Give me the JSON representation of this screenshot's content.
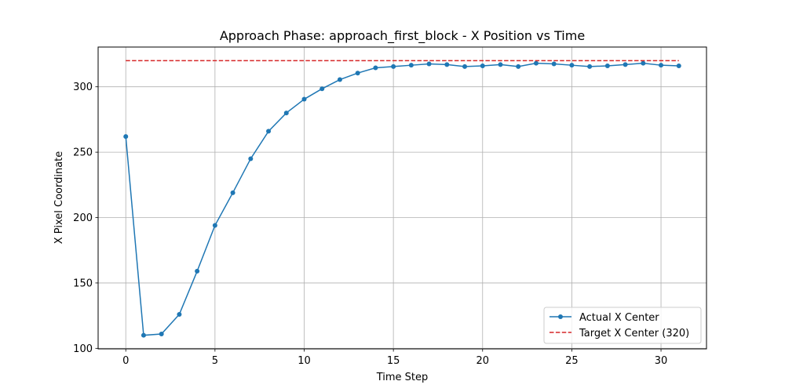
{
  "chart_data": {
    "type": "line",
    "title": "Approach Phase: approach_first_block - X Position vs Time",
    "xlabel": "Time Step",
    "ylabel": "X Pixel Coordinate",
    "xlim": [
      -1.55,
      32.55
    ],
    "ylim": [
      99.6,
      330.4
    ],
    "xticks": [
      0,
      5,
      10,
      15,
      20,
      25,
      30
    ],
    "yticks": [
      100,
      150,
      200,
      250,
      300
    ],
    "grid": true,
    "legend_position": "lower right",
    "series": [
      {
        "name": "Actual X Center",
        "style": "solid-line-with-markers",
        "color": "#1f77b4",
        "x": [
          0,
          1,
          2,
          3,
          4,
          5,
          6,
          7,
          8,
          9,
          10,
          11,
          12,
          13,
          14,
          15,
          16,
          17,
          18,
          19,
          20,
          21,
          22,
          23,
          24,
          25,
          26,
          27,
          28,
          29,
          30,
          31
        ],
        "values": [
          262,
          110,
          111,
          126,
          159,
          194,
          219,
          245,
          266,
          280,
          290.5,
          298.5,
          305.5,
          310.5,
          314.5,
          315.5,
          316.5,
          317.5,
          317,
          315.5,
          316,
          317,
          315.5,
          318,
          317.5,
          316.5,
          315.5,
          316,
          317,
          318,
          316.5,
          316
        ]
      },
      {
        "name": "Target X Center (320)",
        "style": "dashed-line",
        "color": "#d62728",
        "x": [
          0,
          31
        ],
        "values": [
          320,
          320
        ]
      }
    ]
  }
}
